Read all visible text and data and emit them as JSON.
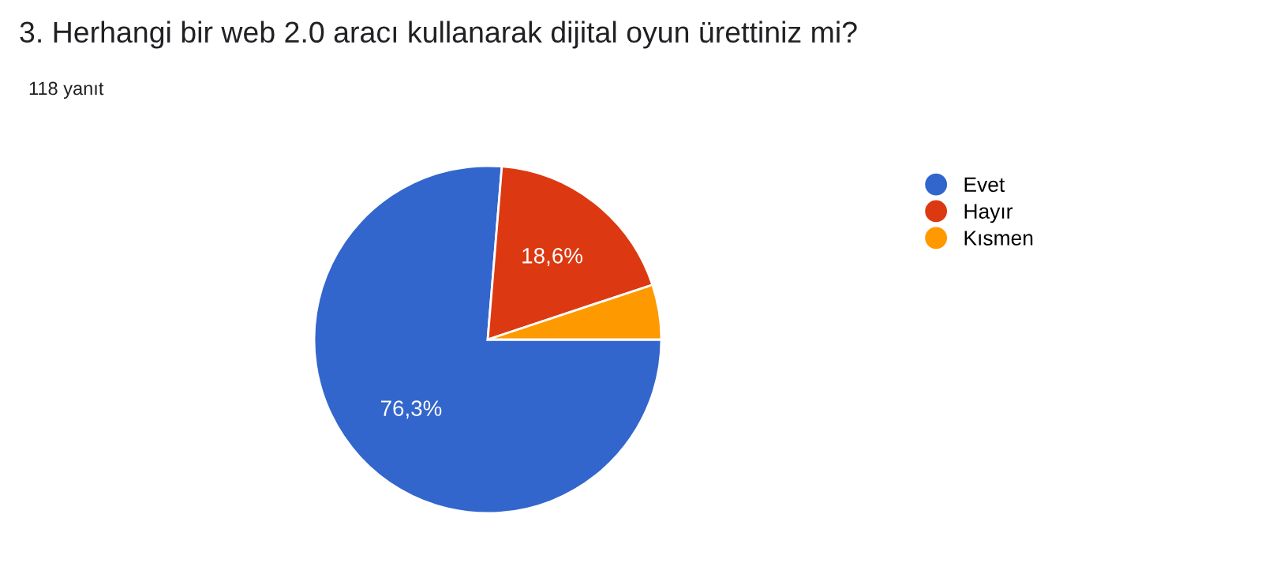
{
  "chart_data": {
    "type": "pie",
    "title": "3. Herhangi bir web 2.0 aracı kullanarak dijital oyun ürettiniz mi?",
    "subtitle": "118 yanıt",
    "categories": [
      "Evet",
      "Hayır",
      "Kısmen"
    ],
    "values": [
      76.3,
      18.6,
      5.1
    ],
    "colors": [
      "#3366cc",
      "#dc3912",
      "#ff9900"
    ],
    "value_labels": [
      "76,3%",
      "18,6%",
      null
    ],
    "legend": "right"
  }
}
